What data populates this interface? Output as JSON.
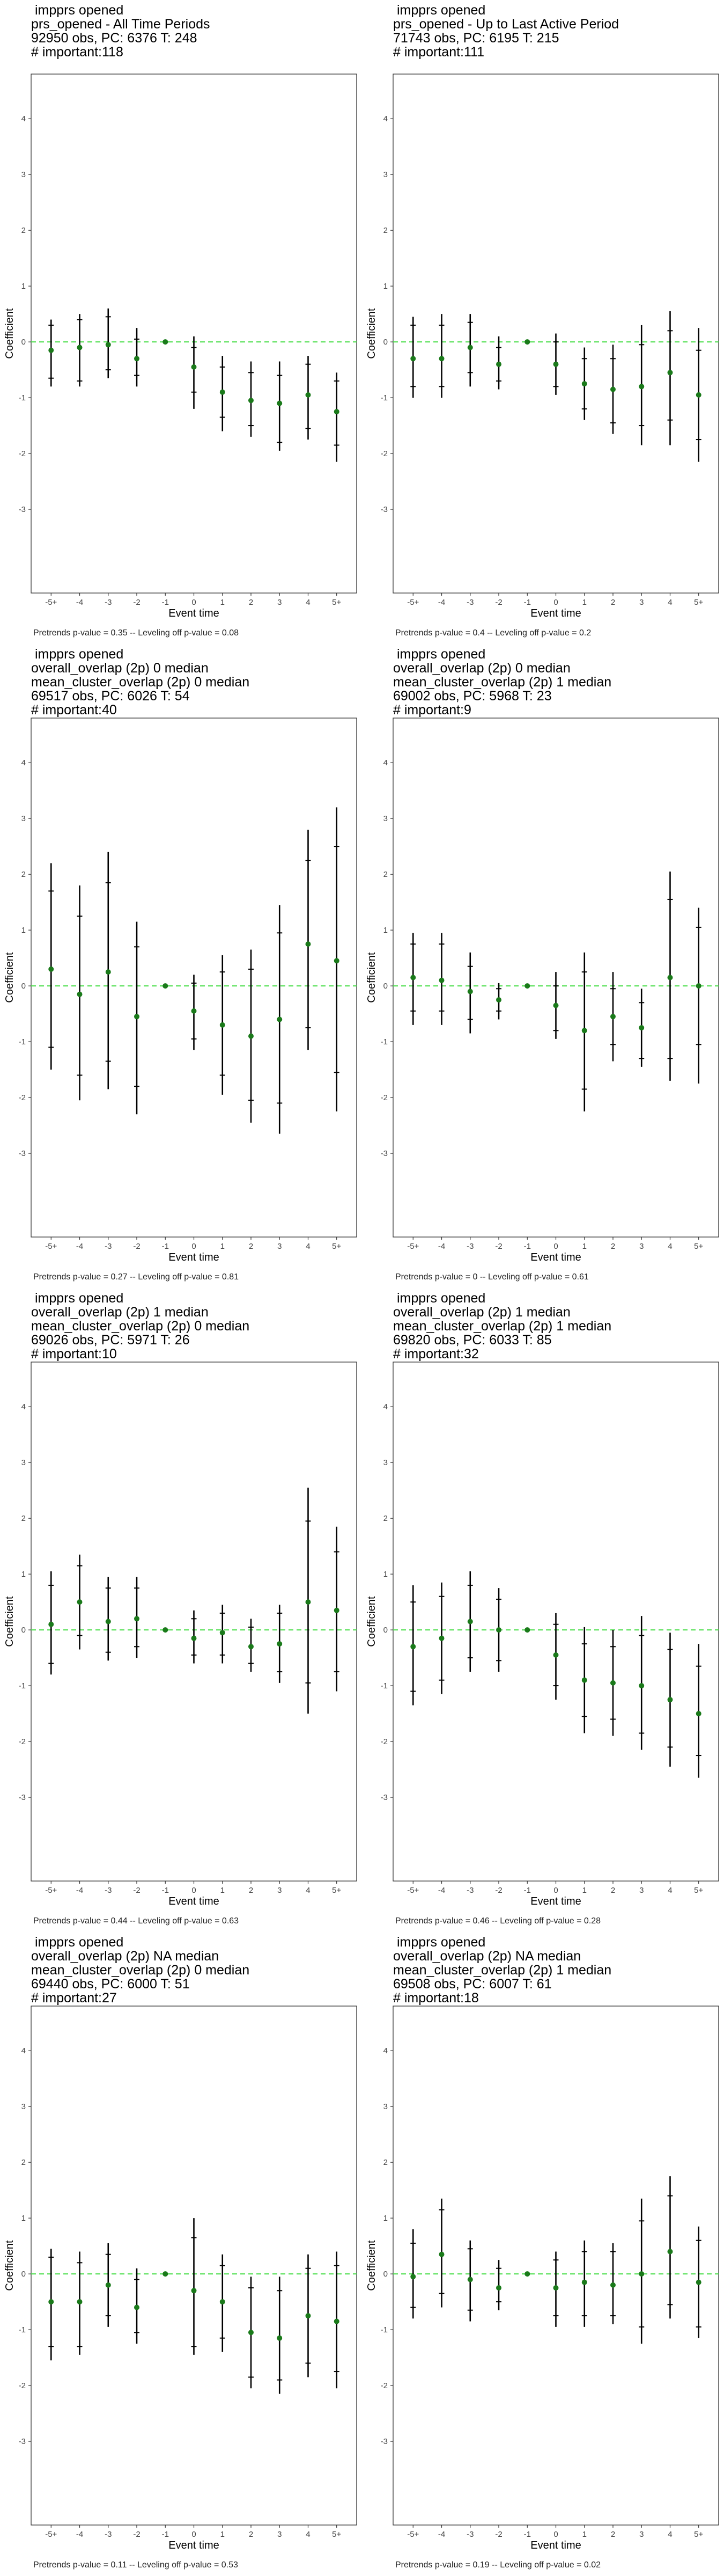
{
  "styles": {
    "point_color": "#1a7a1a",
    "ref_line_color": "#44dd44",
    "bar_color": "#000000",
    "frame_color": "#333333"
  },
  "chart_data": [
    {
      "type": "scatter",
      "title_lines": [
        " impprs opened",
        "prs_opened - All Time Periods",
        "92950 obs, PC: 6376 T: 248",
        "# important:118"
      ],
      "xlabel": "Event time",
      "ylabel": "Coefficient",
      "categories": [
        "-5+",
        "-4",
        "-3",
        "-2",
        "-1",
        "0",
        "1",
        "2",
        "3",
        "4",
        "5+"
      ],
      "ylim": [
        -4.5,
        4.8
      ],
      "yticks": [
        -3,
        -2,
        -1,
        0,
        1,
        2,
        3,
        4
      ],
      "values": [
        -0.15,
        -0.1,
        -0.05,
        -0.3,
        0.0,
        -0.45,
        -0.9,
        -1.05,
        -1.1,
        -0.95,
        -1.25
      ],
      "ci_outer": [
        [
          -0.8,
          0.4
        ],
        [
          -0.8,
          0.5
        ],
        [
          -0.65,
          0.6
        ],
        [
          -0.8,
          0.25
        ],
        null,
        [
          -1.2,
          0.1
        ],
        [
          -1.6,
          -0.25
        ],
        [
          -1.7,
          -0.35
        ],
        [
          -1.95,
          -0.35
        ],
        [
          -1.75,
          -0.25
        ],
        [
          -2.15,
          -0.55
        ]
      ],
      "ci_inner": [
        [
          -0.65,
          0.3
        ],
        [
          -0.7,
          0.4
        ],
        [
          -0.5,
          0.45
        ],
        [
          -0.6,
          0.05
        ],
        null,
        [
          -0.9,
          -0.1
        ],
        [
          -1.35,
          -0.45
        ],
        [
          -1.5,
          -0.55
        ],
        [
          -1.8,
          -0.6
        ],
        [
          -1.55,
          -0.4
        ],
        [
          -1.85,
          -0.7
        ]
      ],
      "footnote": "Pretrends p-value = 0.35 -- Leveling off p-value = 0.08"
    },
    {
      "type": "scatter",
      "title_lines": [
        " impprs opened",
        "prs_opened - Up to Last Active Period",
        "71743 obs, PC: 6195 T: 215",
        "# important:111"
      ],
      "xlabel": "Event time",
      "ylabel": "Coefficient",
      "categories": [
        "-5+",
        "-4",
        "-3",
        "-2",
        "-1",
        "0",
        "1",
        "2",
        "3",
        "4",
        "5+"
      ],
      "ylim": [
        -4.5,
        4.8
      ],
      "yticks": [
        -3,
        -2,
        -1,
        0,
        1,
        2,
        3,
        4
      ],
      "values": [
        -0.3,
        -0.3,
        -0.1,
        -0.4,
        0.0,
        -0.4,
        -0.75,
        -0.85,
        -0.8,
        -0.55,
        -0.95
      ],
      "ci_outer": [
        [
          -1.0,
          0.45
        ],
        [
          -1.0,
          0.5
        ],
        [
          -0.8,
          0.5
        ],
        [
          -0.85,
          0.1
        ],
        null,
        [
          -0.95,
          0.15
        ],
        [
          -1.4,
          -0.1
        ],
        [
          -1.65,
          -0.05
        ],
        [
          -1.85,
          0.3
        ],
        [
          -1.85,
          0.55
        ],
        [
          -2.15,
          0.25
        ]
      ],
      "ci_inner": [
        [
          -0.8,
          0.3
        ],
        [
          -0.8,
          0.3
        ],
        [
          -0.55,
          0.35
        ],
        [
          -0.7,
          -0.1
        ],
        null,
        [
          -0.8,
          0.0
        ],
        [
          -1.2,
          -0.3
        ],
        [
          -1.45,
          -0.3
        ],
        [
          -1.5,
          -0.05
        ],
        [
          -1.4,
          0.2
        ],
        [
          -1.75,
          -0.15
        ]
      ],
      "footnote": "Pretrends p-value = 0.4 -- Leveling off p-value = 0.2"
    },
    {
      "type": "scatter",
      "title_lines": [
        " impprs opened",
        "overall_overlap (2p) 0 median",
        "mean_cluster_overlap (2p) 0 median",
        "69517 obs, PC: 6026 T: 54",
        "# important:40"
      ],
      "xlabel": "Event time",
      "ylabel": "Coefficient",
      "categories": [
        "-5+",
        "-4",
        "-3",
        "-2",
        "-1",
        "0",
        "1",
        "2",
        "3",
        "4",
        "5+"
      ],
      "ylim": [
        -4.5,
        4.8
      ],
      "yticks": [
        -3,
        -2,
        -1,
        0,
        1,
        2,
        3,
        4
      ],
      "values": [
        0.3,
        -0.15,
        0.25,
        -0.55,
        0.0,
        -0.45,
        -0.7,
        -0.9,
        -0.6,
        0.75,
        0.45
      ],
      "ci_outer": [
        [
          -1.5,
          2.2
        ],
        [
          -2.05,
          1.8
        ],
        [
          -1.85,
          2.4
        ],
        [
          -2.3,
          1.15
        ],
        null,
        [
          -1.15,
          0.2
        ],
        [
          -1.95,
          0.55
        ],
        [
          -2.45,
          0.65
        ],
        [
          -2.65,
          1.45
        ],
        [
          -1.15,
          2.8
        ],
        [
          -2.25,
          3.2
        ]
      ],
      "ci_inner": [
        [
          -1.1,
          1.7
        ],
        [
          -1.6,
          1.25
        ],
        [
          -1.35,
          1.85
        ],
        [
          -1.8,
          0.7
        ],
        null,
        [
          -0.95,
          0.05
        ],
        [
          -1.6,
          0.25
        ],
        [
          -2.05,
          0.3
        ],
        [
          -2.1,
          0.95
        ],
        [
          -0.75,
          2.25
        ],
        [
          -1.55,
          2.5
        ]
      ],
      "footnote": "Pretrends p-value = 0.27 -- Leveling off p-value = 0.81"
    },
    {
      "type": "scatter",
      "title_lines": [
        " impprs opened",
        "overall_overlap (2p) 0 median",
        "mean_cluster_overlap (2p) 1 median",
        "69002 obs, PC: 5968 T: 23",
        "# important:9"
      ],
      "xlabel": "Event time",
      "ylabel": "Coefficient",
      "categories": [
        "-5+",
        "-4",
        "-3",
        "-2",
        "-1",
        "0",
        "1",
        "2",
        "3",
        "4",
        "5+"
      ],
      "ylim": [
        -4.5,
        4.8
      ],
      "yticks": [
        -3,
        -2,
        -1,
        0,
        1,
        2,
        3,
        4
      ],
      "values": [
        0.15,
        0.1,
        -0.1,
        -0.25,
        0.0,
        -0.35,
        -0.8,
        -0.55,
        -0.75,
        0.15,
        0.0
      ],
      "ci_outer": [
        [
          -0.7,
          0.95
        ],
        [
          -0.7,
          0.95
        ],
        [
          -0.85,
          0.6
        ],
        [
          -0.6,
          0.05
        ],
        null,
        [
          -0.95,
          0.25
        ],
        [
          -2.25,
          0.6
        ],
        [
          -1.35,
          0.25
        ],
        [
          -1.45,
          -0.05
        ],
        [
          -1.7,
          2.05
        ],
        [
          -1.75,
          1.4
        ]
      ],
      "ci_inner": [
        [
          -0.45,
          0.75
        ],
        [
          -0.45,
          0.75
        ],
        [
          -0.6,
          0.35
        ],
        [
          -0.45,
          -0.05
        ],
        null,
        [
          -0.8,
          0.0
        ],
        [
          -1.85,
          0.25
        ],
        [
          -1.05,
          -0.05
        ],
        [
          -1.3,
          -0.3
        ],
        [
          -1.3,
          1.55
        ],
        [
          -1.05,
          1.05
        ]
      ],
      "footnote": "Pretrends p-value = 0 -- Leveling off p-value = 0.61"
    },
    {
      "type": "scatter",
      "title_lines": [
        " impprs opened",
        "overall_overlap (2p) 1 median",
        "mean_cluster_overlap (2p) 0 median",
        "69026 obs, PC: 5971 T: 26",
        "# important:10"
      ],
      "xlabel": "Event time",
      "ylabel": "Coefficient",
      "categories": [
        "-5+",
        "-4",
        "-3",
        "-2",
        "-1",
        "0",
        "1",
        "2",
        "3",
        "4",
        "5+"
      ],
      "ylim": [
        -4.5,
        4.8
      ],
      "yticks": [
        -3,
        -2,
        -1,
        0,
        1,
        2,
        3,
        4
      ],
      "values": [
        0.1,
        0.5,
        0.15,
        0.2,
        0.0,
        -0.15,
        -0.05,
        -0.3,
        -0.25,
        0.5,
        0.35
      ],
      "ci_outer": [
        [
          -0.8,
          1.05
        ],
        [
          -0.35,
          1.35
        ],
        [
          -0.55,
          0.95
        ],
        [
          -0.5,
          0.95
        ],
        null,
        [
          -0.6,
          0.35
        ],
        [
          -0.6,
          0.45
        ],
        [
          -0.75,
          0.2
        ],
        [
          -0.95,
          0.45
        ],
        [
          -1.5,
          2.55
        ],
        [
          -1.1,
          1.85
        ]
      ],
      "ci_inner": [
        [
          -0.6,
          0.8
        ],
        [
          -0.1,
          1.15
        ],
        [
          -0.4,
          0.75
        ],
        [
          -0.3,
          0.75
        ],
        null,
        [
          -0.45,
          0.2
        ],
        [
          -0.45,
          0.3
        ],
        [
          -0.6,
          0.05
        ],
        [
          -0.75,
          0.3
        ],
        [
          -0.95,
          1.95
        ],
        [
          -0.75,
          1.4
        ]
      ],
      "footnote": "Pretrends p-value = 0.44 -- Leveling off p-value = 0.63"
    },
    {
      "type": "scatter",
      "title_lines": [
        " impprs opened",
        "overall_overlap (2p) 1 median",
        "mean_cluster_overlap (2p) 1 median",
        "69820 obs, PC: 6033 T: 85",
        "# important:32"
      ],
      "xlabel": "Event time",
      "ylabel": "Coefficient",
      "categories": [
        "-5+",
        "-4",
        "-3",
        "-2",
        "-1",
        "0",
        "1",
        "2",
        "3",
        "4",
        "5+"
      ],
      "ylim": [
        -4.5,
        4.8
      ],
      "yticks": [
        -3,
        -2,
        -1,
        0,
        1,
        2,
        3,
        4
      ],
      "values": [
        -0.3,
        -0.15,
        0.15,
        0.0,
        0.0,
        -0.45,
        -0.9,
        -0.95,
        -1.0,
        -1.25,
        -1.5
      ],
      "ci_outer": [
        [
          -1.35,
          0.8
        ],
        [
          -1.15,
          0.85
        ],
        [
          -0.75,
          1.05
        ],
        [
          -0.75,
          0.75
        ],
        null,
        [
          -1.25,
          0.3
        ],
        [
          -1.85,
          0.05
        ],
        [
          -1.9,
          0.0
        ],
        [
          -2.15,
          0.25
        ],
        [
          -2.45,
          -0.05
        ],
        [
          -2.65,
          -0.25
        ]
      ],
      "ci_inner": [
        [
          -1.1,
          0.5
        ],
        [
          -0.9,
          0.6
        ],
        [
          -0.5,
          0.8
        ],
        [
          -0.55,
          0.55
        ],
        null,
        [
          -1.0,
          0.1
        ],
        [
          -1.55,
          -0.25
        ],
        [
          -1.6,
          -0.3
        ],
        [
          -1.85,
          -0.1
        ],
        [
          -2.1,
          -0.35
        ],
        [
          -2.25,
          -0.65
        ]
      ],
      "footnote": "Pretrends p-value = 0.46 -- Leveling off p-value = 0.28"
    },
    {
      "type": "scatter",
      "title_lines": [
        " impprs opened",
        "overall_overlap (2p) NA median",
        "mean_cluster_overlap (2p) 0 median",
        "69440 obs, PC: 6000 T: 51",
        "# important:27"
      ],
      "xlabel": "Event time",
      "ylabel": "Coefficient",
      "categories": [
        "-5+",
        "-4",
        "-3",
        "-2",
        "-1",
        "0",
        "1",
        "2",
        "3",
        "4",
        "5+"
      ],
      "ylim": [
        -4.5,
        4.8
      ],
      "yticks": [
        -3,
        -2,
        -1,
        0,
        1,
        2,
        3,
        4
      ],
      "values": [
        -0.5,
        -0.5,
        -0.2,
        -0.6,
        0.0,
        -0.3,
        -0.5,
        -1.05,
        -1.15,
        -0.75,
        -0.85
      ],
      "ci_outer": [
        [
          -1.55,
          0.45
        ],
        [
          -1.45,
          0.4
        ],
        [
          -0.95,
          0.55
        ],
        [
          -1.25,
          0.1
        ],
        null,
        [
          -1.45,
          1.0
        ],
        [
          -1.4,
          0.35
        ],
        [
          -2.05,
          -0.05
        ],
        [
          -2.15,
          -0.05
        ],
        [
          -1.85,
          0.35
        ],
        [
          -2.05,
          0.4
        ]
      ],
      "ci_inner": [
        [
          -1.3,
          0.3
        ],
        [
          -1.3,
          0.2
        ],
        [
          -0.75,
          0.35
        ],
        [
          -1.05,
          -0.1
        ],
        null,
        [
          -1.3,
          0.65
        ],
        [
          -1.15,
          0.15
        ],
        [
          -1.85,
          -0.25
        ],
        [
          -1.9,
          -0.3
        ],
        [
          -1.6,
          0.1
        ],
        [
          -1.75,
          0.15
        ]
      ],
      "footnote": "Pretrends p-value = 0.11 -- Leveling off p-value = 0.53"
    },
    {
      "type": "scatter",
      "title_lines": [
        " impprs opened",
        "overall_overlap (2p) NA median",
        "mean_cluster_overlap (2p) 1 median",
        "69508 obs, PC: 6007 T: 61",
        "# important:18"
      ],
      "xlabel": "Event time",
      "ylabel": "Coefficient",
      "categories": [
        "-5+",
        "-4",
        "-3",
        "-2",
        "-1",
        "0",
        "1",
        "2",
        "3",
        "4",
        "5+"
      ],
      "ylim": [
        -4.5,
        4.8
      ],
      "yticks": [
        -3,
        -2,
        -1,
        0,
        1,
        2,
        3,
        4
      ],
      "values": [
        -0.05,
        0.35,
        -0.1,
        -0.25,
        0.0,
        -0.25,
        -0.15,
        -0.2,
        0.0,
        0.4,
        -0.15
      ],
      "ci_outer": [
        [
          -0.8,
          0.8
        ],
        [
          -0.6,
          1.35
        ],
        [
          -0.85,
          0.6
        ],
        [
          -0.65,
          0.25
        ],
        null,
        [
          -0.95,
          0.4
        ],
        [
          -0.95,
          0.6
        ],
        [
          -0.9,
          0.55
        ],
        [
          -1.25,
          1.35
        ],
        [
          -0.8,
          1.75
        ],
        [
          -1.15,
          0.85
        ]
      ],
      "ci_inner": [
        [
          -0.6,
          0.55
        ],
        [
          -0.35,
          1.15
        ],
        [
          -0.65,
          0.45
        ],
        [
          -0.5,
          0.1
        ],
        null,
        [
          -0.75,
          0.25
        ],
        [
          -0.75,
          0.4
        ],
        [
          -0.75,
          0.4
        ],
        [
          -0.95,
          0.95
        ],
        [
          -0.55,
          1.4
        ],
        [
          -0.95,
          0.6
        ]
      ],
      "footnote": "Pretrends p-value = 0.19 -- Leveling off p-value = 0.02"
    }
  ]
}
